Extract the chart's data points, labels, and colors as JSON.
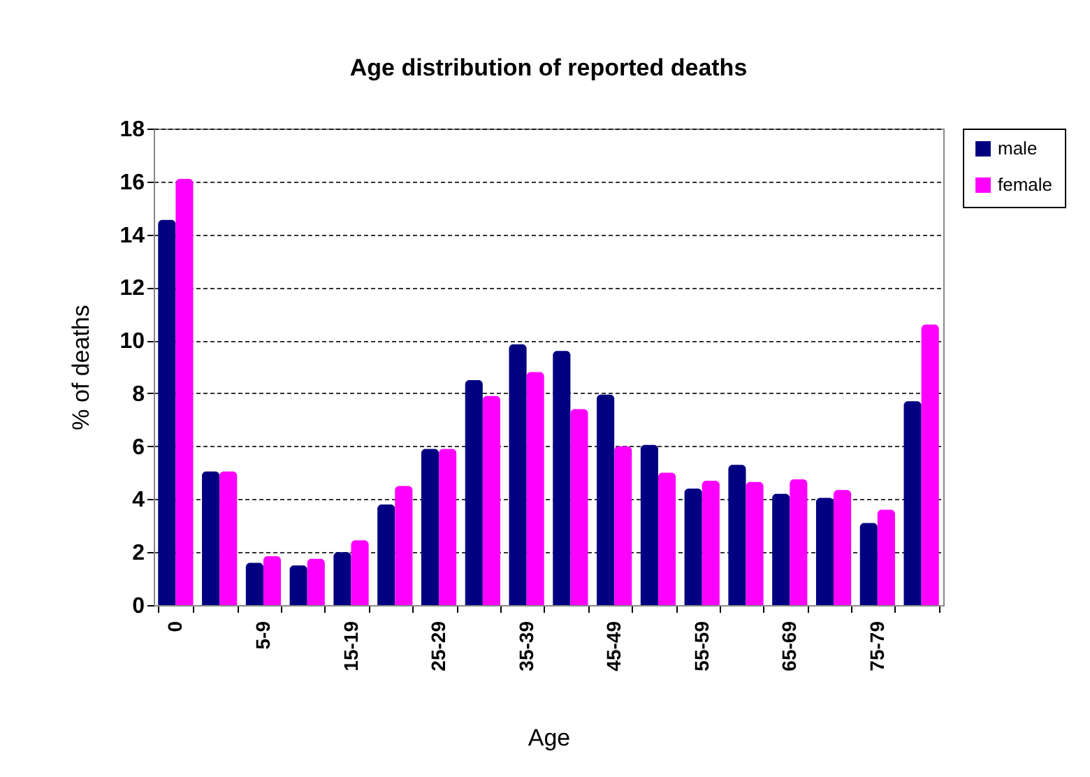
{
  "chart_data": {
    "type": "bar",
    "title": "Age distribution  of reported  deaths",
    "xlabel": "Age",
    "ylabel": "% of deaths",
    "categories": [
      "0",
      null,
      "5-9",
      null,
      "15-19",
      null,
      "25-29",
      null,
      "35-39",
      null,
      "45-49",
      null,
      "55-59",
      null,
      "65-69",
      null,
      "75-79",
      null
    ],
    "series": [
      {
        "name": "male",
        "color": "#000080",
        "values": [
          14.55,
          5.05,
          1.6,
          1.5,
          2.0,
          3.8,
          5.9,
          8.5,
          9.85,
          9.6,
          7.95,
          6.05,
          4.4,
          5.3,
          4.2,
          4.05,
          3.1,
          7.7
        ]
      },
      {
        "name": "female",
        "color": "#ff00ff",
        "values": [
          16.1,
          5.05,
          1.85,
          1.75,
          2.45,
          4.5,
          5.9,
          7.9,
          8.8,
          7.4,
          6.0,
          5.0,
          4.7,
          4.65,
          4.75,
          4.35,
          3.6,
          10.6
        ]
      }
    ],
    "ylim": [
      0,
      18
    ],
    "yticks": [
      0,
      2,
      4,
      6,
      8,
      10,
      12,
      14,
      16,
      18
    ],
    "grid": "y",
    "legend": "right"
  }
}
